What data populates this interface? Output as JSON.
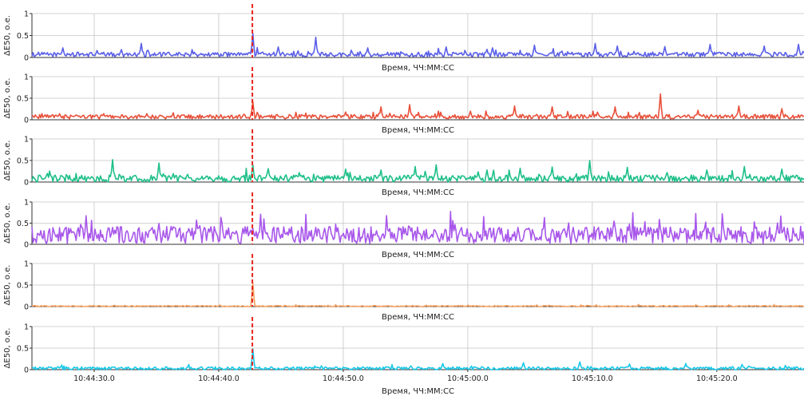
{
  "chart_data": [
    {
      "type": "line",
      "ylabel": "ΔE50, о.е.",
      "xlabel": "Время, ЧЧ:ММ:СС",
      "ylim": [
        0,
        1
      ],
      "yticks": [
        "0",
        "0.5",
        "1"
      ],
      "xlim": [
        "10:44:25.0",
        "10:45:27.0"
      ],
      "grid": true,
      "event_marker": {
        "x": "10:44:42.7",
        "style": "red dashed vertical line",
        "color": "#e8251c"
      },
      "color": "#5a5fe6",
      "baseline": 0.07,
      "noise": 0.05,
      "spikes": [
        {
          "x": "10:44:27.5",
          "y": 0.22
        },
        {
          "x": "10:44:30.2",
          "y": 0.16
        },
        {
          "x": "10:44:32.2",
          "y": 0.18
        },
        {
          "x": "10:44:33.8",
          "y": 0.32
        },
        {
          "x": "10:44:38.0",
          "y": 0.12
        },
        {
          "x": "10:44:42.7",
          "y": 0.55
        },
        {
          "x": "10:44:44.8",
          "y": 0.24
        },
        {
          "x": "10:44:47.8",
          "y": 0.46
        },
        {
          "x": "10:44:52.0",
          "y": 0.22
        },
        {
          "x": "10:44:58.3",
          "y": 0.24
        },
        {
          "x": "10:45:02.0",
          "y": 0.22
        },
        {
          "x": "10:45:05.4",
          "y": 0.28
        },
        {
          "x": "10:45:10.2",
          "y": 0.32
        },
        {
          "x": "10:45:12.0",
          "y": 0.26
        },
        {
          "x": "10:45:15.8",
          "y": 0.25
        },
        {
          "x": "10:45:19.5",
          "y": 0.3
        },
        {
          "x": "10:45:23.8",
          "y": 0.26
        },
        {
          "x": "10:45:26.6",
          "y": 0.3
        }
      ]
    },
    {
      "type": "line",
      "ylabel": "ΔE50, о.е.",
      "xlabel": "Время, ЧЧ:ММ:СС",
      "ylim": [
        0,
        1
      ],
      "yticks": [
        "0",
        "0.5",
        "1"
      ],
      "xlim": [
        "10:44:25.0",
        "10:45:27.0"
      ],
      "grid": true,
      "event_marker": {
        "x": "10:44:42.7",
        "style": "red dashed vertical line",
        "color": "#e8251c"
      },
      "color": "#e8503a",
      "baseline": 0.07,
      "noise": 0.05,
      "spikes": [
        {
          "x": "10:44:27.2",
          "y": 0.14
        },
        {
          "x": "10:44:30.8",
          "y": 0.14
        },
        {
          "x": "10:44:34.2",
          "y": 0.14
        },
        {
          "x": "10:44:42.7",
          "y": 0.42
        },
        {
          "x": "10:44:50.2",
          "y": 0.18
        },
        {
          "x": "10:44:53.0",
          "y": 0.3
        },
        {
          "x": "10:44:55.3",
          "y": 0.35
        },
        {
          "x": "10:45:00.2",
          "y": 0.2
        },
        {
          "x": "10:45:03.8",
          "y": 0.32
        },
        {
          "x": "10:45:06.8",
          "y": 0.3
        },
        {
          "x": "10:45:11.8",
          "y": 0.3
        },
        {
          "x": "10:45:15.5",
          "y": 0.6
        },
        {
          "x": "10:45:18.5",
          "y": 0.22
        },
        {
          "x": "10:45:21.8",
          "y": 0.32
        },
        {
          "x": "10:45:25.2",
          "y": 0.26
        }
      ]
    },
    {
      "type": "line",
      "ylabel": "ΔE50, о.е.",
      "xlabel": "Время, ЧЧ:ММ:СС",
      "ylim": [
        0,
        1
      ],
      "yticks": [
        "0",
        "0.5",
        "1"
      ],
      "xlim": [
        "10:44:25.0",
        "10:45:27.0"
      ],
      "grid": true,
      "event_marker": {
        "x": "10:44:42.7",
        "style": "red dashed vertical line",
        "color": "#e8251c"
      },
      "color": "#1fbf8a",
      "baseline": 0.08,
      "noise": 0.08,
      "spikes": [
        {
          "x": "10:44:26.2",
          "y": 0.2
        },
        {
          "x": "10:44:29.5",
          "y": 0.12
        },
        {
          "x": "10:44:31.5",
          "y": 0.52
        },
        {
          "x": "10:44:35.2",
          "y": 0.44
        },
        {
          "x": "10:44:37.5",
          "y": 0.18
        },
        {
          "x": "10:44:42.7",
          "y": 0.4
        },
        {
          "x": "10:44:46.5",
          "y": 0.22
        },
        {
          "x": "10:44:50.2",
          "y": 0.3
        },
        {
          "x": "10:44:53.0",
          "y": 0.28
        },
        {
          "x": "10:44:55.8",
          "y": 0.36
        },
        {
          "x": "10:44:57.5",
          "y": 0.4
        },
        {
          "x": "10:45:01.5",
          "y": 0.28
        },
        {
          "x": "10:45:04.2",
          "y": 0.32
        },
        {
          "x": "10:45:06.8",
          "y": 0.35
        },
        {
          "x": "10:45:09.8",
          "y": 0.5
        },
        {
          "x": "10:45:12.8",
          "y": 0.34
        },
        {
          "x": "10:45:16.0",
          "y": 0.22
        },
        {
          "x": "10:45:19.2",
          "y": 0.28
        },
        {
          "x": "10:45:22.2",
          "y": 0.36
        },
        {
          "x": "10:45:25.2",
          "y": 0.3
        }
      ]
    },
    {
      "type": "line",
      "ylabel": "ΔE50, о.е.",
      "xlabel": "Время, ЧЧ:ММ:СС",
      "ylim": [
        0,
        1
      ],
      "yticks": [
        "0",
        "0.5",
        "1"
      ],
      "xlim": [
        "10:44:25.0",
        "10:45:27.0"
      ],
      "grid": true,
      "event_marker": {
        "x": "10:44:42.7",
        "style": "red dashed vertical line",
        "color": "#e8251c"
      },
      "color": "#a857ea",
      "baseline": 0.22,
      "noise": 0.2,
      "spikes": [
        {
          "x": "10:44:31.5",
          "y": 0.4
        },
        {
          "x": "10:44:36.2",
          "y": 0.42
        },
        {
          "x": "10:44:38.5",
          "y": 0.44
        },
        {
          "x": "10:44:40.3",
          "y": 0.52
        },
        {
          "x": "10:44:42.7",
          "y": 0.38
        },
        {
          "x": "10:44:48.5",
          "y": 0.38
        },
        {
          "x": "10:44:55.0",
          "y": 0.38
        },
        {
          "x": "10:45:02.5",
          "y": 0.4
        },
        {
          "x": "10:45:08.5",
          "y": 0.4
        },
        {
          "x": "10:45:14.5",
          "y": 0.4
        },
        {
          "x": "10:45:20.5",
          "y": 0.4
        }
      ]
    },
    {
      "type": "line",
      "ylabel": "ΔE50, о.е.",
      "xlabel": "Время, ЧЧ:ММ:СС",
      "ylim": [
        0,
        1
      ],
      "yticks": [
        "0",
        "0.5",
        "1"
      ],
      "xlim": [
        "10:44:25.0",
        "10:45:27.0"
      ],
      "grid": true,
      "event_marker": {
        "x": "10:44:42.7",
        "style": "red dashed vertical line",
        "color": "#e8251c"
      },
      "color": "#f5a05f",
      "baseline": 0.01,
      "noise": 0.015,
      "spikes": [
        {
          "x": "10:44:42.7",
          "y": 0.55
        }
      ]
    },
    {
      "type": "line",
      "ylabel": "ΔE50, о.е.",
      "xlabel": "Время, ЧЧ:ММ:СС",
      "ylim": [
        0,
        1
      ],
      "yticks": [
        "0",
        "0.5",
        "1"
      ],
      "xlim": [
        "10:44:25.0",
        "10:45:27.0"
      ],
      "xticks": [
        "10:44:30.0",
        "10:44:40.0",
        "10:44:50.0",
        "10:45:00.0",
        "10:45:10.0",
        "10:45:20.0"
      ],
      "grid": true,
      "event_marker": {
        "x": "10:44:42.7",
        "style": "red dashed vertical line",
        "color": "#e8251c"
      },
      "color": "#18c8e8",
      "baseline": 0.03,
      "noise": 0.035,
      "spikes": [
        {
          "x": "10:44:42.7",
          "y": 0.48
        },
        {
          "x": "10:44:58.0",
          "y": 0.14
        },
        {
          "x": "10:45:04.5",
          "y": 0.16
        },
        {
          "x": "10:45:09.0",
          "y": 0.18
        },
        {
          "x": "10:45:13.0",
          "y": 0.13
        },
        {
          "x": "10:45:17.5",
          "y": 0.14
        },
        {
          "x": "10:45:22.0",
          "y": 0.12
        }
      ]
    }
  ]
}
